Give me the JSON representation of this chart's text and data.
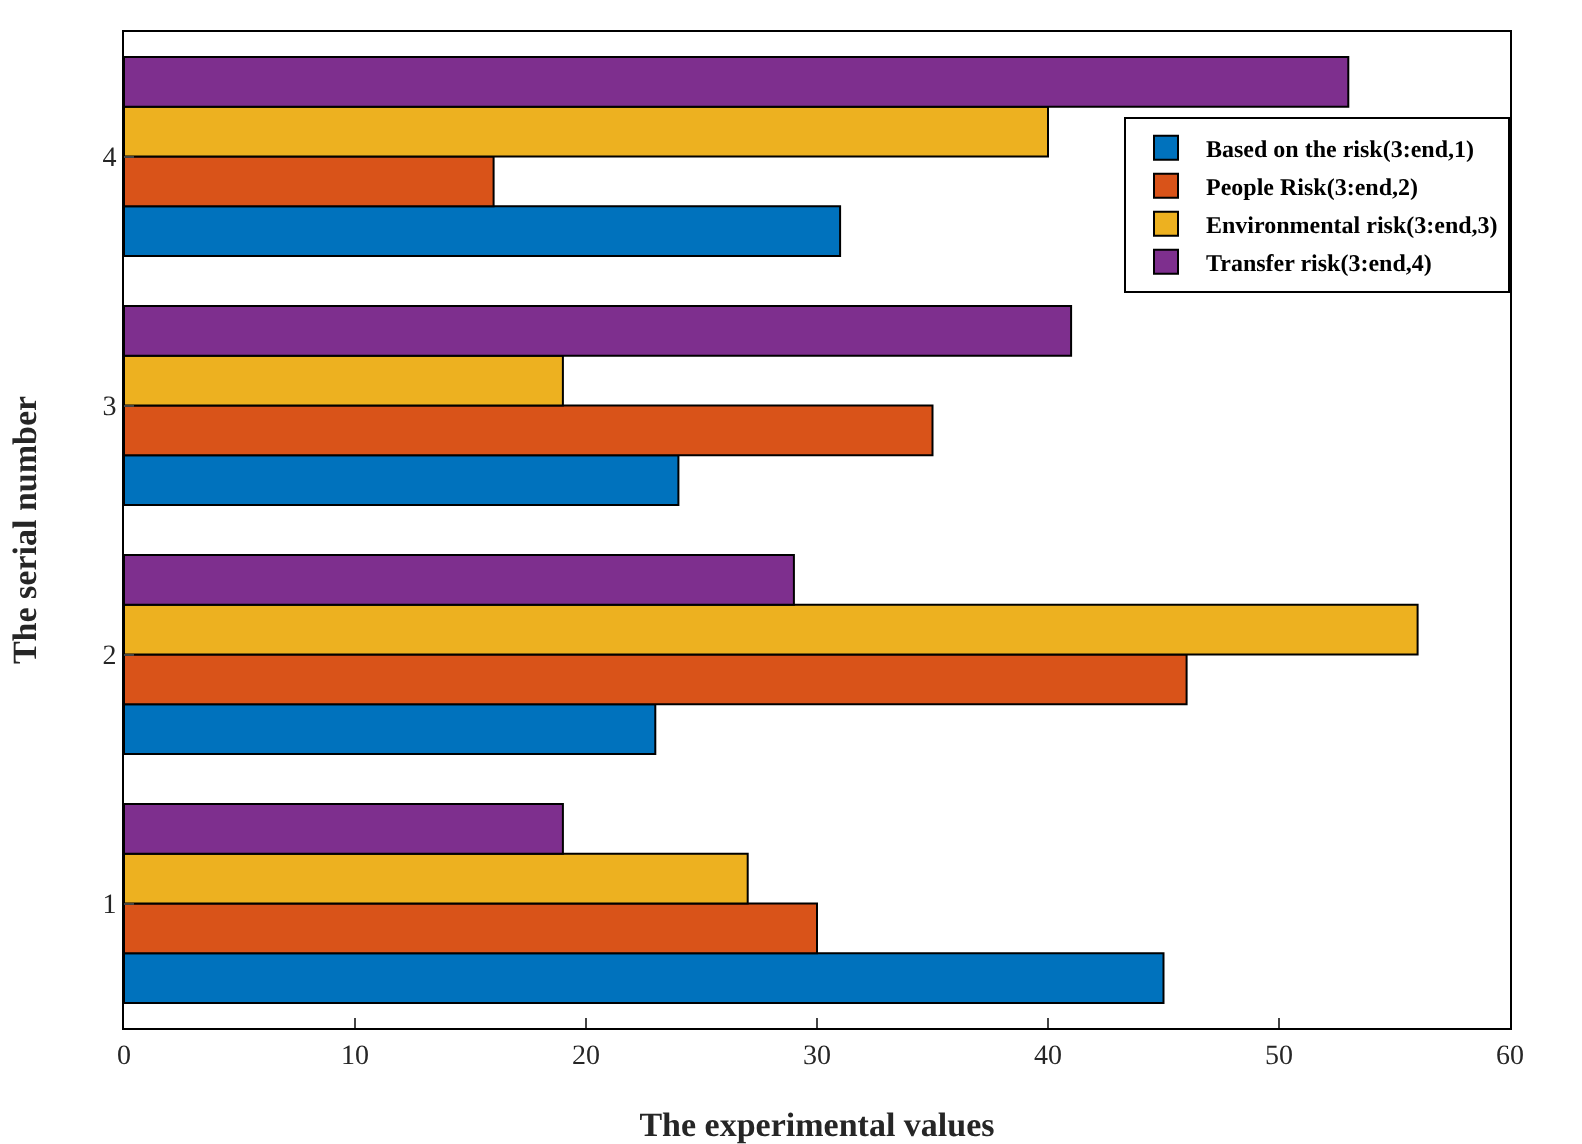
{
  "chart_data": {
    "type": "bar",
    "orientation": "horizontal",
    "xlabel": "The experimental values",
    "ylabel": "The serial number",
    "categories": [
      "4",
      "3",
      "2",
      "1"
    ],
    "series": [
      {
        "name": "Based on the risk(3:end,1)",
        "color": "#0072bd",
        "values": [
          31,
          24,
          23,
          45
        ]
      },
      {
        "name": "People Risk(3:end,2)",
        "color": "#d95319",
        "values": [
          16,
          35,
          46,
          30
        ]
      },
      {
        "name": "Environmental risk(3:end,3)",
        "color": "#edb120",
        "values": [
          40,
          19,
          56,
          27
        ]
      },
      {
        "name": "Transfer risk(3:end,4)",
        "color": "#7e2f8e",
        "values": [
          53,
          41,
          29,
          19
        ]
      }
    ],
    "xlim": [
      0,
      60
    ],
    "xticks": [
      0,
      10,
      20,
      30,
      40,
      50,
      60
    ],
    "grid": false,
    "legend": "top right"
  }
}
